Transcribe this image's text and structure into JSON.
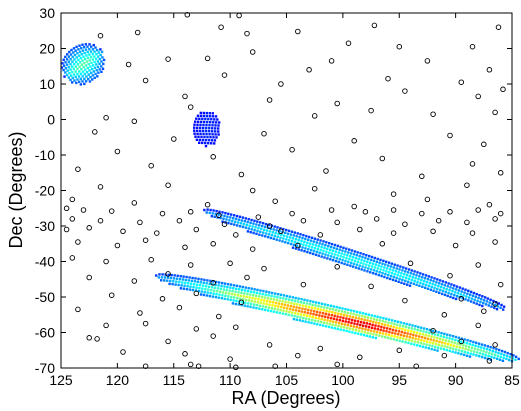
{
  "chart_data": {
    "type": "scatter",
    "title": "",
    "xlabel": "RA (Degrees)",
    "ylabel": "Dec (Degrees)",
    "xlim": [
      125,
      85
    ],
    "ylim": [
      -70,
      30
    ],
    "x_reversed": true,
    "xticks": [
      125,
      120,
      115,
      110,
      105,
      100,
      95,
      90,
      85
    ],
    "yticks": [
      30,
      20,
      10,
      0,
      -10,
      -20,
      -30,
      -40,
      -50,
      -60,
      -70
    ],
    "grid": false,
    "legend": "none",
    "series": [
      {
        "name": "objects",
        "marker": "open-circle",
        "color": "#000000",
        "points": [
          [
            113.8,
            29.5
          ],
          [
            109.2,
            29.3
          ],
          [
            110.8,
            26.0
          ],
          [
            108.5,
            24.2
          ],
          [
            121.5,
            23.6
          ],
          [
            118.2,
            24.5
          ],
          [
            104.0,
            24.8
          ],
          [
            97.2,
            26.5
          ],
          [
            86.2,
            26.0
          ],
          [
            88.5,
            20.5
          ],
          [
            95.0,
            20.5
          ],
          [
            99.5,
            21.5
          ],
          [
            108.0,
            19.0
          ],
          [
            112.0,
            17.2
          ],
          [
            119.0,
            15.5
          ],
          [
            115.5,
            17.0
          ],
          [
            103.0,
            14.0
          ],
          [
            101.0,
            16.5
          ],
          [
            92.5,
            16.5
          ],
          [
            87.0,
            14.0
          ],
          [
            89.5,
            10.5
          ],
          [
            96.0,
            11.5
          ],
          [
            105.5,
            10.0
          ],
          [
            110.5,
            12.5
          ],
          [
            117.5,
            11.0
          ],
          [
            114.0,
            6.5
          ],
          [
            106.5,
            5.5
          ],
          [
            100.5,
            4.5
          ],
          [
            94.5,
            8.0
          ],
          [
            88.0,
            6.5
          ],
          [
            85.8,
            8.5
          ],
          [
            121.0,
            0.5
          ],
          [
            118.5,
            -0.5
          ],
          [
            113.5,
            3.5
          ],
          [
            102.5,
            1.0
          ],
          [
            97.5,
            2.5
          ],
          [
            92.0,
            1.5
          ],
          [
            86.5,
            2.0
          ],
          [
            122.0,
            -3.5
          ],
          [
            115.0,
            -5.5
          ],
          [
            107.0,
            -4.0
          ],
          [
            99.0,
            -6.0
          ],
          [
            90.5,
            -4.5
          ],
          [
            87.5,
            -7.0
          ],
          [
            120.0,
            -9.0
          ],
          [
            111.5,
            -10.5
          ],
          [
            104.5,
            -8.5
          ],
          [
            96.5,
            -11.0
          ],
          [
            88.5,
            -12.5
          ],
          [
            123.5,
            -14.0
          ],
          [
            117.0,
            -13.0
          ],
          [
            109.0,
            -15.5
          ],
          [
            101.5,
            -14.5
          ],
          [
            93.0,
            -16.0
          ],
          [
            86.0,
            -15.0
          ],
          [
            121.5,
            -19.0
          ],
          [
            115.5,
            -18.5
          ],
          [
            108.0,
            -20.0
          ],
          [
            102.5,
            -19.5
          ],
          [
            95.5,
            -21.0
          ],
          [
            89.0,
            -18.5
          ],
          [
            124.0,
            -22.5
          ],
          [
            118.5,
            -23.5
          ],
          [
            112.0,
            -24.0
          ],
          [
            106.0,
            -23.0
          ],
          [
            99.0,
            -24.5
          ],
          [
            92.5,
            -22.5
          ],
          [
            87.0,
            -24.0
          ],
          [
            124.5,
            -25.0
          ],
          [
            123.0,
            -25.5
          ],
          [
            120.5,
            -25.8
          ],
          [
            116.0,
            -26.5
          ],
          [
            113.5,
            -26.0
          ],
          [
            111.0,
            -27.0
          ],
          [
            107.5,
            -27.5
          ],
          [
            104.5,
            -26.5
          ],
          [
            101.0,
            -25.5
          ],
          [
            98.0,
            -26.0
          ],
          [
            95.5,
            -25.5
          ],
          [
            93.0,
            -26.5
          ],
          [
            90.5,
            -26.0
          ],
          [
            88.0,
            -25.5
          ],
          [
            86.0,
            -26.5
          ],
          [
            124.0,
            -28.0
          ],
          [
            121.5,
            -28.5
          ],
          [
            118.0,
            -29.0
          ],
          [
            114.5,
            -28.5
          ],
          [
            110.5,
            -29.5
          ],
          [
            106.5,
            -30.0
          ],
          [
            103.5,
            -28.5
          ],
          [
            100.5,
            -29.0
          ],
          [
            97.0,
            -28.0
          ],
          [
            94.5,
            -29.5
          ],
          [
            91.5,
            -28.5
          ],
          [
            89.0,
            -29.0
          ],
          [
            86.5,
            -28.0
          ],
          [
            124.5,
            -31.0
          ],
          [
            122.5,
            -30.5
          ],
          [
            119.5,
            -31.5
          ],
          [
            116.5,
            -32.0
          ],
          [
            113.0,
            -31.0
          ],
          [
            109.5,
            -32.5
          ],
          [
            105.5,
            -31.5
          ],
          [
            102.0,
            -32.5
          ],
          [
            98.5,
            -31.0
          ],
          [
            95.5,
            -32.0
          ],
          [
            92.0,
            -31.5
          ],
          [
            88.5,
            -32.0
          ],
          [
            123.5,
            -34.5
          ],
          [
            120.0,
            -35.5
          ],
          [
            117.5,
            -34.0
          ],
          [
            114.0,
            -36.0
          ],
          [
            111.5,
            -35.0
          ],
          [
            108.0,
            -36.5
          ],
          [
            104.0,
            -35.5
          ],
          [
            96.5,
            -35.0
          ],
          [
            90.0,
            -35.5
          ],
          [
            86.5,
            -34.5
          ],
          [
            124.0,
            -39.0
          ],
          [
            121.0,
            -40.0
          ],
          [
            117.0,
            -39.5
          ],
          [
            113.5,
            -41.0
          ],
          [
            110.0,
            -40.5
          ],
          [
            107.0,
            -42.0
          ],
          [
            100.5,
            -41.5
          ],
          [
            94.0,
            -40.5
          ],
          [
            88.0,
            -41.0
          ],
          [
            122.5,
            -44.5
          ],
          [
            118.5,
            -45.5
          ],
          [
            115.5,
            -43.5
          ],
          [
            111.5,
            -46.0
          ],
          [
            108.5,
            -44.5
          ],
          [
            103.5,
            -46.5
          ],
          [
            97.5,
            -47.0
          ],
          [
            90.5,
            -44.0
          ],
          [
            86.0,
            -46.5
          ],
          [
            120.5,
            -49.5
          ],
          [
            116.0,
            -50.5
          ],
          [
            113.0,
            -49.0
          ],
          [
            109.0,
            -51.5
          ],
          [
            94.5,
            -51.0
          ],
          [
            89.5,
            -50.5
          ],
          [
            86.5,
            -52.0
          ],
          [
            123.5,
            -53.5
          ],
          [
            118.0,
            -54.5
          ],
          [
            114.5,
            -53.0
          ],
          [
            111.0,
            -55.5
          ],
          [
            91.0,
            -55.0
          ],
          [
            87.5,
            -54.0
          ],
          [
            121.0,
            -58.0
          ],
          [
            117.5,
            -57.5
          ],
          [
            113.0,
            -59.0
          ],
          [
            109.5,
            -58.5
          ],
          [
            92.0,
            -59.5
          ],
          [
            88.0,
            -58.0
          ],
          [
            122.5,
            -61.5
          ],
          [
            121.8,
            -61.8
          ],
          [
            115.5,
            -62.5
          ],
          [
            111.5,
            -61.0
          ],
          [
            106.5,
            -63.5
          ],
          [
            102.0,
            -64.5
          ],
          [
            95.0,
            -65.0
          ],
          [
            89.5,
            -62.5
          ],
          [
            86.5,
            -63.5
          ],
          [
            119.5,
            -65.5
          ],
          [
            114.0,
            -66.0
          ],
          [
            110.0,
            -67.5
          ],
          [
            104.0,
            -66.5
          ],
          [
            98.5,
            -67.0
          ],
          [
            91.0,
            -66.5
          ],
          [
            87.0,
            -68.0
          ],
          [
            117.5,
            -69.5
          ],
          [
            113.5,
            -69.0
          ],
          [
            112.8,
            -69.5
          ],
          [
            109.5,
            -69.8
          ],
          [
            106.0,
            -69.5
          ],
          [
            100.5,
            -69.0
          ],
          [
            93.5,
            -69.5
          ]
        ]
      }
    ],
    "density_regions": [
      {
        "name": "region-1",
        "center": [
          123.0,
          15.5
        ],
        "extent": [
          4.0,
          10.0
        ],
        "angle_deg": -35,
        "peak": 0.35
      },
      {
        "name": "region-2",
        "center": [
          112.0,
          -2.5
        ],
        "extent": [
          2.2,
          10.0
        ],
        "angle_deg": -88,
        "peak": 0.05
      },
      {
        "name": "region-3",
        "center": [
          99.0,
          -39.5
        ],
        "extent": [
          28.0,
          4.0
        ],
        "angle_deg": 18,
        "peak": 0.3
      },
      {
        "name": "region-4",
        "center": [
          100.5,
          -56.0
        ],
        "extent": [
          33.0,
          5.5
        ],
        "angle_deg": 13,
        "peak": 1.0
      }
    ]
  }
}
